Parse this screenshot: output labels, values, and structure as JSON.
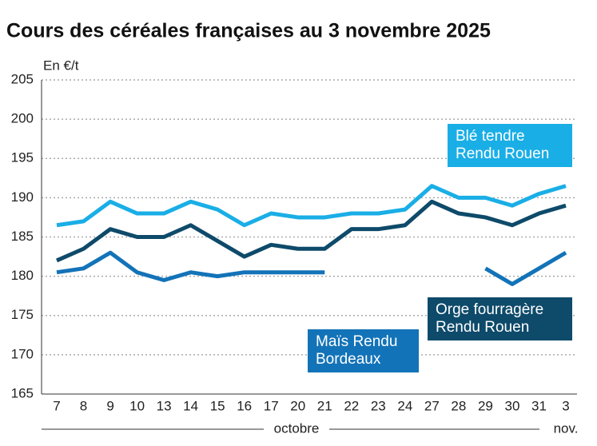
{
  "chart_data": {
    "type": "line",
    "title": "Cours des céréales françaises au 3 novembre 2025",
    "y_axis_label": "En €/t",
    "categories": [
      "7",
      "8",
      "9",
      "10",
      "13",
      "14",
      "15",
      "16",
      "17",
      "20",
      "21",
      "22",
      "23",
      "24",
      "27",
      "28",
      "29",
      "30",
      "31",
      "3"
    ],
    "months": [
      "octobre",
      "nov."
    ],
    "series": [
      {
        "name": "Blé tendre Rendu Rouen",
        "color": "#1aaee6",
        "values": [
          186.5,
          187,
          189.5,
          188,
          188,
          189.5,
          188.5,
          186.5,
          188,
          187.5,
          187.5,
          188,
          188,
          188.5,
          191.5,
          190,
          190,
          189,
          190.5,
          191.5
        ]
      },
      {
        "name": "Orge fourragère Rendu Rouen",
        "color": "#0e4a6a",
        "values": [
          182,
          183.5,
          186,
          185,
          185,
          186.5,
          184.5,
          182.5,
          184,
          183.5,
          183.5,
          186,
          186,
          186.5,
          189.5,
          188,
          187.5,
          186.5,
          188,
          189
        ]
      },
      {
        "name": "Maïs Rendu Bordeaux",
        "color": "#1373b8",
        "values": [
          180.5,
          181,
          183,
          180.5,
          179.5,
          180.5,
          180,
          180.5,
          180.5,
          180.5,
          180.5,
          null,
          null,
          null,
          null,
          null,
          181,
          179,
          181,
          183
        ]
      }
    ],
    "ylim": [
      165,
      205
    ],
    "yticks": [
      165,
      170,
      175,
      180,
      185,
      190,
      195,
      200,
      205
    ],
    "grid": true
  }
}
